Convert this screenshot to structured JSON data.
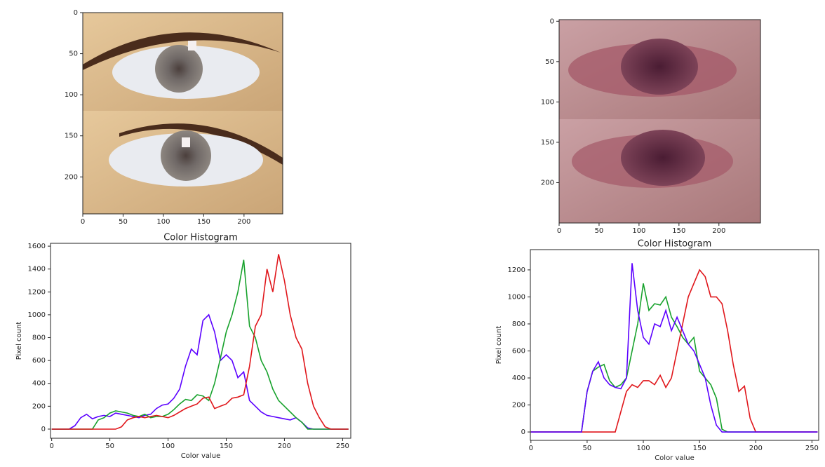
{
  "chart_data": [
    {
      "type": "image",
      "xlim": [
        0,
        248
      ],
      "ylim": [
        245,
        0
      ],
      "xticks": [
        0,
        50,
        100,
        150,
        200
      ],
      "yticks": [
        0,
        50,
        100,
        150,
        200
      ]
    },
    {
      "type": "line",
      "title": "Color Histogram",
      "xlabel": "Color value",
      "ylabel": "Pixel count",
      "xlim": [
        -1,
        257
      ],
      "ylim": [
        -80,
        1625
      ],
      "xticks": [
        0,
        50,
        100,
        150,
        200,
        250
      ],
      "yticks": [
        0,
        200,
        400,
        600,
        800,
        1000,
        1200,
        1400,
        1600
      ],
      "x": [
        0,
        5,
        10,
        15,
        20,
        25,
        30,
        35,
        40,
        45,
        50,
        55,
        60,
        65,
        70,
        75,
        80,
        85,
        90,
        95,
        100,
        105,
        110,
        115,
        120,
        125,
        130,
        135,
        140,
        145,
        150,
        155,
        160,
        165,
        170,
        175,
        180,
        185,
        190,
        195,
        200,
        205,
        210,
        215,
        220,
        225,
        230,
        235,
        240,
        245,
        250,
        255
      ],
      "series": [
        {
          "color": "#5b00ff",
          "values": [
            0,
            0,
            0,
            0,
            30,
            100,
            130,
            90,
            110,
            120,
            110,
            140,
            130,
            120,
            110,
            100,
            120,
            130,
            180,
            210,
            220,
            270,
            350,
            550,
            700,
            650,
            950,
            1000,
            850,
            600,
            650,
            600,
            450,
            500,
            250,
            200,
            150,
            120,
            110,
            100,
            90,
            80,
            100,
            60,
            10,
            0,
            0,
            0,
            0,
            0,
            0,
            0
          ]
        },
        {
          "color": "#17a22c",
          "values": [
            0,
            0,
            0,
            0,
            0,
            0,
            0,
            0,
            80,
            100,
            140,
            160,
            150,
            140,
            120,
            110,
            130,
            100,
            110,
            110,
            130,
            170,
            220,
            260,
            250,
            300,
            290,
            250,
            400,
            620,
            850,
            1000,
            1200,
            1480,
            900,
            800,
            600,
            500,
            350,
            250,
            200,
            150,
            100,
            60,
            0,
            0,
            0,
            0,
            0,
            0,
            0,
            0
          ]
        },
        {
          "color": "#e0161b",
          "values": [
            0,
            0,
            0,
            0,
            0,
            0,
            0,
            0,
            0,
            0,
            0,
            0,
            20,
            80,
            100,
            110,
            100,
            110,
            120,
            110,
            100,
            120,
            150,
            180,
            200,
            220,
            270,
            280,
            180,
            200,
            220,
            270,
            280,
            300,
            550,
            900,
            1000,
            1400,
            1200,
            1530,
            1300,
            1000,
            800,
            700,
            400,
            200,
            100,
            20,
            0,
            0,
            0,
            0
          ]
        }
      ]
    },
    {
      "type": "image",
      "xlim": [
        0,
        252
      ],
      "ylim": [
        250,
        -2
      ],
      "xticks": [
        0,
        50,
        100,
        150,
        200
      ],
      "yticks": [
        0,
        50,
        100,
        150,
        200
      ]
    },
    {
      "type": "line",
      "title": "Color Histogram",
      "xlabel": "Color value",
      "ylabel": "Pixel count",
      "xlim": [
        -0.5,
        256
      ],
      "ylim": [
        -62,
        1350
      ],
      "xticks": [
        0,
        50,
        100,
        150,
        200,
        250
      ],
      "yticks": [
        0,
        200,
        400,
        600,
        800,
        1000,
        1200
      ],
      "x": [
        0,
        5,
        10,
        15,
        20,
        25,
        30,
        35,
        40,
        45,
        50,
        55,
        60,
        65,
        70,
        75,
        80,
        85,
        90,
        95,
        100,
        105,
        110,
        115,
        120,
        125,
        130,
        135,
        140,
        145,
        150,
        155,
        160,
        165,
        170,
        175,
        180,
        185,
        190,
        195,
        200,
        205,
        210,
        215,
        220,
        225,
        230,
        235,
        240,
        245,
        250,
        255
      ],
      "series": [
        {
          "color": "#17a22c",
          "values": [
            0,
            0,
            0,
            0,
            0,
            0,
            0,
            0,
            0,
            0,
            300,
            450,
            480,
            500,
            380,
            330,
            350,
            400,
            600,
            800,
            1100,
            900,
            950,
            940,
            1000,
            850,
            780,
            700,
            650,
            700,
            450,
            400,
            350,
            250,
            20,
            0,
            0,
            0,
            0,
            0,
            0,
            0,
            0,
            0,
            0,
            0,
            0,
            0,
            0,
            0,
            0,
            0
          ]
        },
        {
          "color": "#e0161b",
          "values": [
            0,
            0,
            0,
            0,
            0,
            0,
            0,
            0,
            0,
            0,
            0,
            0,
            0,
            0,
            0,
            0,
            150,
            300,
            350,
            330,
            380,
            380,
            350,
            420,
            330,
            400,
            600,
            800,
            1000,
            1100,
            1200,
            1150,
            1000,
            1000,
            950,
            750,
            500,
            300,
            340,
            100,
            0,
            0,
            0,
            0,
            0,
            0,
            0,
            0,
            0,
            0,
            0,
            0
          ]
        },
        {
          "color": "#5b00ff",
          "values": [
            0,
            0,
            0,
            0,
            0,
            0,
            0,
            0,
            0,
            0,
            300,
            450,
            520,
            400,
            350,
            330,
            320,
            400,
            1250,
            900,
            700,
            650,
            800,
            780,
            900,
            750,
            850,
            750,
            650,
            600,
            500,
            400,
            200,
            50,
            0,
            0,
            0,
            0,
            0,
            0,
            0,
            0,
            0,
            0,
            0,
            0,
            0,
            0,
            0,
            0,
            0,
            0
          ]
        }
      ]
    }
  ]
}
